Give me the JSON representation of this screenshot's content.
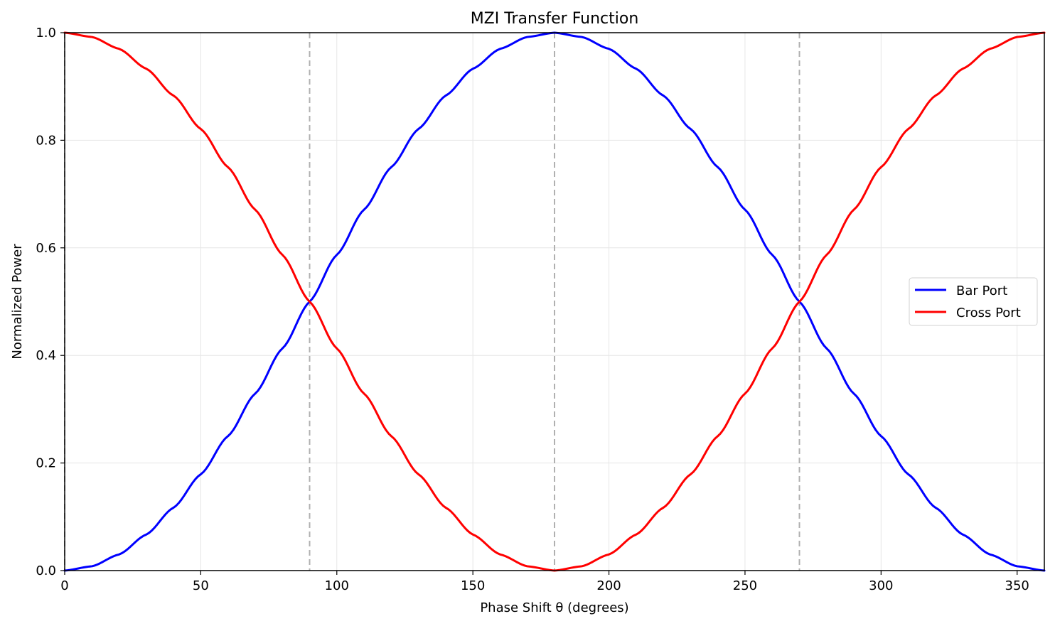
{
  "chart_data": {
    "type": "line",
    "title": "MZI Transfer Function",
    "xlabel": "Phase Shift θ (degrees)",
    "ylabel": "Normalized Power",
    "xlim": [
      0,
      360
    ],
    "ylim": [
      0,
      1
    ],
    "xticks": [
      0,
      50,
      100,
      150,
      200,
      250,
      300,
      350
    ],
    "yticks": [
      0.0,
      0.2,
      0.4,
      0.6,
      0.8,
      1.0
    ],
    "ytick_labels": [
      "0.0",
      "0.2",
      "0.4",
      "0.6",
      "0.8",
      "1.0"
    ],
    "grid": true,
    "legend_position": "center-right",
    "vertical_reference_lines": [
      90,
      180,
      270
    ],
    "reference_line_color": "#b0b0b0",
    "series": [
      {
        "name": "Bar Port",
        "color": "#0000ff",
        "x": [
          0,
          10,
          20,
          30,
          40,
          50,
          60,
          70,
          80,
          90,
          100,
          110,
          120,
          130,
          140,
          150,
          160,
          170,
          180,
          190,
          200,
          210,
          220,
          230,
          240,
          250,
          260,
          270,
          280,
          290,
          300,
          310,
          320,
          330,
          340,
          350,
          360
        ],
        "y": [
          0.0,
          0.008,
          0.03,
          0.067,
          0.117,
          0.179,
          0.25,
          0.329,
          0.413,
          0.5,
          0.587,
          0.671,
          0.75,
          0.821,
          0.883,
          0.933,
          0.97,
          0.992,
          1.0,
          0.992,
          0.97,
          0.933,
          0.883,
          0.821,
          0.75,
          0.671,
          0.587,
          0.5,
          0.413,
          0.329,
          0.25,
          0.179,
          0.117,
          0.067,
          0.03,
          0.008,
          0.0
        ]
      },
      {
        "name": "Cross Port",
        "color": "#ff0000",
        "x": [
          0,
          10,
          20,
          30,
          40,
          50,
          60,
          70,
          80,
          90,
          100,
          110,
          120,
          130,
          140,
          150,
          160,
          170,
          180,
          190,
          200,
          210,
          220,
          230,
          240,
          250,
          260,
          270,
          280,
          290,
          300,
          310,
          320,
          330,
          340,
          350,
          360
        ],
        "y": [
          1.0,
          0.992,
          0.97,
          0.933,
          0.883,
          0.821,
          0.75,
          0.671,
          0.587,
          0.5,
          0.413,
          0.329,
          0.25,
          0.179,
          0.117,
          0.067,
          0.03,
          0.008,
          0.0,
          0.008,
          0.03,
          0.067,
          0.117,
          0.179,
          0.25,
          0.329,
          0.413,
          0.5,
          0.587,
          0.671,
          0.75,
          0.821,
          0.883,
          0.933,
          0.97,
          0.992,
          1.0
        ]
      }
    ]
  }
}
